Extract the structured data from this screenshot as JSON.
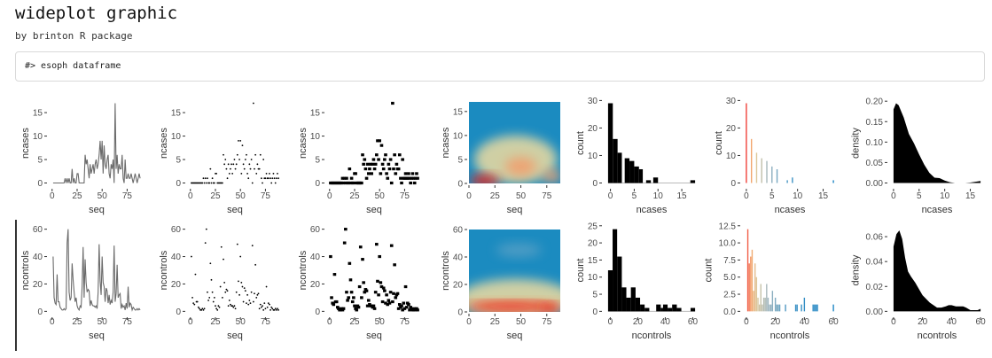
{
  "header": {
    "title": "wideplot graphic",
    "subtitle": "by brinton R package",
    "code": "#> esoph dataframe"
  },
  "colors": {
    "line": "#6b6b6b",
    "marks": "#000000",
    "heat_low": "#1b8bc0",
    "heat_mid": "#efdca0",
    "heat_high": "#e8261a",
    "lollipop_palette": [
      "#f0433a",
      "#f3a86e",
      "#dcc89c",
      "#9fb6bf",
      "#3d92c4",
      "#1f86c5"
    ]
  },
  "series": {
    "ncases": [
      0,
      0,
      0,
      0,
      0,
      0,
      0,
      0,
      0,
      0,
      0,
      0,
      1,
      0,
      1,
      0,
      1,
      0,
      0,
      3,
      0,
      1,
      0,
      0,
      2,
      2,
      0,
      0,
      0,
      0,
      0,
      0,
      6,
      4,
      5,
      3,
      1,
      4,
      2,
      3,
      4,
      2,
      4,
      5,
      3,
      4,
      6,
      9,
      5,
      9,
      2,
      8,
      4,
      3,
      5,
      6,
      2,
      1,
      4,
      3,
      5,
      0,
      17,
      3,
      6,
      2,
      4,
      3,
      3,
      6,
      1,
      0,
      5,
      1,
      1,
      2,
      1,
      1,
      2,
      1,
      0,
      1,
      2,
      1,
      0,
      1,
      2,
      1
    ],
    "ncontrols": [
      40,
      10,
      6,
      5,
      27,
      7,
      7,
      3,
      2,
      1,
      1,
      2,
      1,
      2,
      50,
      60,
      14,
      8,
      10,
      35,
      23,
      14,
      7,
      10,
      4,
      2,
      1,
      4,
      3,
      18,
      47,
      10,
      38,
      21,
      14,
      16,
      15,
      4,
      8,
      5,
      4,
      4,
      3,
      4,
      2,
      14,
      49,
      22,
      12,
      40,
      21,
      18,
      7,
      17,
      15,
      6,
      12,
      5,
      8,
      6,
      14,
      48,
      7,
      13,
      34,
      10,
      12,
      13,
      2,
      5,
      3,
      4,
      1,
      6,
      2,
      18,
      3,
      6,
      5,
      1,
      3,
      2,
      1,
      1,
      2,
      1,
      2,
      1
    ]
  },
  "chart_data": [
    {
      "type": "line",
      "row": 1,
      "x": "seq",
      "y": "ncases",
      "xlabel": "seq",
      "ylabel": "ncases",
      "xlim": [
        1,
        88
      ],
      "ylim": [
        0,
        17
      ],
      "xticks": [
        0,
        25,
        50,
        75
      ],
      "yticks": [
        0,
        5,
        10,
        15
      ]
    },
    {
      "type": "scatter",
      "row": 1,
      "x": "seq",
      "y": "ncases",
      "xlabel": "seq",
      "ylabel": "ncases",
      "xlim": [
        1,
        88
      ],
      "ylim": [
        0,
        17
      ],
      "xticks": [
        0,
        25,
        50,
        75
      ],
      "yticks": [
        0,
        5,
        10,
        15
      ]
    },
    {
      "type": "tile",
      "row": 1,
      "x": "seq",
      "y": "ncases",
      "xlabel": "seq",
      "ylabel": "ncases",
      "xlim": [
        1,
        88
      ],
      "ylim": [
        0,
        17
      ],
      "xticks": [
        0,
        25,
        50,
        75
      ],
      "yticks": [
        0,
        5,
        10,
        15
      ]
    },
    {
      "type": "heatmap",
      "row": 1,
      "x": "seq",
      "y": "ncases",
      "xlabel": "seq",
      "ylabel": "ncases",
      "xlim": [
        0,
        88
      ],
      "ylim": [
        0,
        17
      ],
      "xticks": [
        0,
        25,
        50,
        75
      ],
      "yticks": [
        0,
        5,
        10,
        15
      ],
      "hotspots": [
        {
          "x": 45,
          "y": 5,
          "rx": 40,
          "ry": 5,
          "level": "low"
        },
        {
          "x": 50,
          "y": 3.5,
          "rx": 15,
          "ry": 2,
          "level": "mid"
        },
        {
          "x": 15,
          "y": 0.6,
          "rx": 14,
          "ry": 1.2,
          "level": "high"
        },
        {
          "x": 80,
          "y": 1.5,
          "rx": 9,
          "ry": 1.3,
          "level": "mid"
        }
      ]
    },
    {
      "type": "bar",
      "row": 1,
      "xlabel": "ncases",
      "ylabel": "count",
      "xlim": [
        -0.5,
        17.8
      ],
      "ylim": [
        0,
        29
      ],
      "xticks": [
        0,
        5,
        10,
        15
      ],
      "yticks": [
        0,
        10,
        20,
        30
      ],
      "bins": [
        {
          "from": -0.5,
          "to": 0.5,
          "count": 29
        },
        {
          "from": 0.5,
          "to": 1.5,
          "count": 16
        },
        {
          "from": 1.5,
          "to": 2.4,
          "count": 11
        },
        {
          "from": 2.4,
          "to": 3.0,
          "count": 0
        },
        {
          "from": 3.0,
          "to": 4.0,
          "count": 9
        },
        {
          "from": 4.0,
          "to": 5.0,
          "count": 8
        },
        {
          "from": 5.0,
          "to": 6.0,
          "count": 6
        },
        {
          "from": 6.0,
          "to": 6.8,
          "count": 5
        },
        {
          "from": 6.8,
          "to": 7.5,
          "count": 0
        },
        {
          "from": 7.5,
          "to": 8.5,
          "count": 1
        },
        {
          "from": 8.5,
          "to": 9.0,
          "count": 0
        },
        {
          "from": 9.0,
          "to": 10.0,
          "count": 2
        },
        {
          "from": 10.0,
          "to": 16.8,
          "count": 0
        },
        {
          "from": 16.8,
          "to": 17.8,
          "count": 1
        }
      ]
    },
    {
      "type": "lollipop",
      "row": 1,
      "xlabel": "ncases",
      "ylabel": "count",
      "xlim": [
        0,
        17
      ],
      "ylim": [
        0,
        29
      ],
      "xticks": [
        0,
        5,
        10,
        15
      ],
      "yticks": [
        0,
        10,
        20,
        30
      ],
      "x": [
        0,
        1,
        2,
        3,
        4,
        5,
        6,
        8,
        9,
        17
      ],
      "values": [
        29,
        16,
        11,
        9,
        8,
        6,
        5,
        1,
        2,
        1
      ]
    },
    {
      "type": "area",
      "row": 1,
      "xlabel": "ncases",
      "ylabel": "density",
      "xlim": [
        0,
        17
      ],
      "ylim": [
        0,
        0.195
      ],
      "xticks": [
        0,
        5,
        10,
        15
      ],
      "yticks": [
        0,
        0.05,
        0.1,
        0.15,
        0.2
      ],
      "ytick_labels": [
        "0.00",
        "0.05",
        "0.10",
        "0.15",
        "0.20"
      ],
      "x": [
        0,
        0.5,
        1,
        2,
        3,
        4,
        5,
        6,
        7,
        8,
        9,
        10,
        11,
        12,
        13,
        14,
        15,
        16,
        17
      ],
      "values": [
        0.18,
        0.195,
        0.19,
        0.16,
        0.12,
        0.097,
        0.07,
        0.045,
        0.025,
        0.013,
        0.012,
        0.006,
        0.002,
        0,
        0,
        0,
        0.001,
        0.003,
        0.005
      ]
    },
    {
      "type": "line",
      "row": 2,
      "x": "seq",
      "y": "ncontrols",
      "xlabel": "seq",
      "ylabel": "ncontrols",
      "xlim": [
        1,
        88
      ],
      "ylim": [
        0,
        60
      ],
      "xticks": [
        0,
        25,
        50,
        75
      ],
      "yticks": [
        0,
        20,
        40,
        60
      ]
    },
    {
      "type": "scatter",
      "row": 2,
      "x": "seq",
      "y": "ncontrols",
      "xlabel": "seq",
      "ylabel": "ncontrols",
      "xlim": [
        1,
        88
      ],
      "ylim": [
        0,
        60
      ],
      "xticks": [
        0,
        25,
        50,
        75
      ],
      "yticks": [
        0,
        20,
        40,
        60
      ]
    },
    {
      "type": "tile",
      "row": 2,
      "x": "seq",
      "y": "ncontrols",
      "xlabel": "seq",
      "ylabel": "ncontrols",
      "xlim": [
        1,
        88
      ],
      "ylim": [
        0,
        60
      ],
      "xticks": [
        0,
        25,
        50,
        75
      ],
      "yticks": [
        0,
        20,
        40,
        60
      ]
    },
    {
      "type": "heatmap",
      "row": 2,
      "x": "seq",
      "y": "ncontrols",
      "xlabel": "seq",
      "ylabel": "ncontrols",
      "xlim": [
        0,
        88
      ],
      "ylim": [
        0,
        60
      ],
      "xticks": [
        0,
        25,
        50,
        75
      ],
      "yticks": [
        0,
        20,
        40,
        60
      ],
      "hotspots": [
        {
          "x": 45,
          "y": 10,
          "rx": 55,
          "ry": 14,
          "level": "low"
        },
        {
          "x": 48,
          "y": 45,
          "rx": 22,
          "ry": 5,
          "level": "faint"
        },
        {
          "x": 44,
          "y": 4,
          "rx": 50,
          "ry": 4,
          "level": "mid"
        },
        {
          "x": 40,
          "y": 4,
          "rx": 40,
          "ry": 3,
          "level": "high"
        },
        {
          "x": 78,
          "y": 3,
          "rx": 10,
          "ry": 3,
          "level": "high"
        }
      ]
    },
    {
      "type": "bar",
      "row": 2,
      "xlabel": "ncontrols",
      "ylabel": "count",
      "xlim": [
        -1.6,
        61.7
      ],
      "ylim": [
        0,
        24
      ],
      "xticks": [
        0,
        20,
        40,
        60
      ],
      "yticks": [
        0,
        5,
        10,
        15,
        20,
        25
      ],
      "bins": [
        {
          "from": -1.6,
          "to": 1.7,
          "count": 12
        },
        {
          "from": 1.7,
          "to": 5.0,
          "count": 24
        },
        {
          "from": 5.0,
          "to": 8.4,
          "count": 16
        },
        {
          "from": 8.4,
          "to": 11.7,
          "count": 7
        },
        {
          "from": 11.7,
          "to": 15.0,
          "count": 4
        },
        {
          "from": 15.0,
          "to": 18.4,
          "count": 7
        },
        {
          "from": 18.4,
          "to": 21.7,
          "count": 4
        },
        {
          "from": 21.7,
          "to": 25.0,
          "count": 2
        },
        {
          "from": 25.0,
          "to": 28.4,
          "count": 1
        },
        {
          "from": 28.4,
          "to": 33.4,
          "count": 0
        },
        {
          "from": 33.4,
          "to": 36.7,
          "count": 2
        },
        {
          "from": 36.7,
          "to": 38.4,
          "count": 1
        },
        {
          "from": 38.4,
          "to": 41.7,
          "count": 2
        },
        {
          "from": 41.7,
          "to": 45.0,
          "count": 1
        },
        {
          "from": 45.0,
          "to": 48.4,
          "count": 2
        },
        {
          "from": 48.4,
          "to": 51.7,
          "count": 1
        },
        {
          "from": 51.7,
          "to": 58.4,
          "count": 0
        },
        {
          "from": 58.4,
          "to": 61.7,
          "count": 1
        }
      ]
    },
    {
      "type": "lollipop",
      "row": 2,
      "xlabel": "ncontrols",
      "ylabel": "count",
      "xlim": [
        0,
        60
      ],
      "ylim": [
        0,
        12
      ],
      "xticks": [
        0,
        20,
        40,
        60
      ],
      "yticks": [
        0,
        2.5,
        5,
        7.5,
        10,
        12.5
      ],
      "ytick_labels": [
        "0.0",
        "2.5",
        "5.0",
        "7.5",
        "10.0",
        "12.5"
      ],
      "x": [
        1,
        2,
        3,
        4,
        5,
        6,
        7,
        8,
        9,
        10,
        11,
        12,
        13,
        14,
        15,
        16,
        17,
        18,
        20,
        21,
        22,
        23,
        27,
        34,
        35,
        38,
        40,
        46,
        47,
        48,
        49,
        60
      ],
      "values": [
        12,
        7,
        8,
        9,
        3,
        7,
        5,
        2,
        1,
        4,
        1,
        2,
        2,
        4,
        2,
        1,
        1,
        3,
        2,
        1,
        1,
        1,
        1,
        1,
        1,
        1,
        2,
        1,
        1,
        1,
        1,
        1
      ]
    },
    {
      "type": "area",
      "row": 2,
      "xlabel": "ncontrols",
      "ylabel": "density",
      "xlim": [
        0,
        60
      ],
      "ylim": [
        0,
        0.066
      ],
      "xticks": [
        0,
        20,
        40,
        60
      ],
      "yticks": [
        0,
        0.02,
        0.04,
        0.06
      ],
      "ytick_labels": [
        "0.00",
        "0.02",
        "0.04",
        "0.06"
      ],
      "x": [
        0,
        2,
        4,
        6,
        8,
        10,
        12,
        15,
        18,
        20,
        25,
        30,
        33,
        36,
        38,
        40,
        43,
        46,
        48,
        50,
        53,
        56,
        58,
        60
      ],
      "values": [
        0.052,
        0.062,
        0.065,
        0.058,
        0.043,
        0.032,
        0.028,
        0.023,
        0.017,
        0.013,
        0.007,
        0.003,
        0.003,
        0.004,
        0.005,
        0.005,
        0.004,
        0.004,
        0.004,
        0.003,
        0.001,
        0.001,
        0.001,
        0.002
      ]
    }
  ]
}
